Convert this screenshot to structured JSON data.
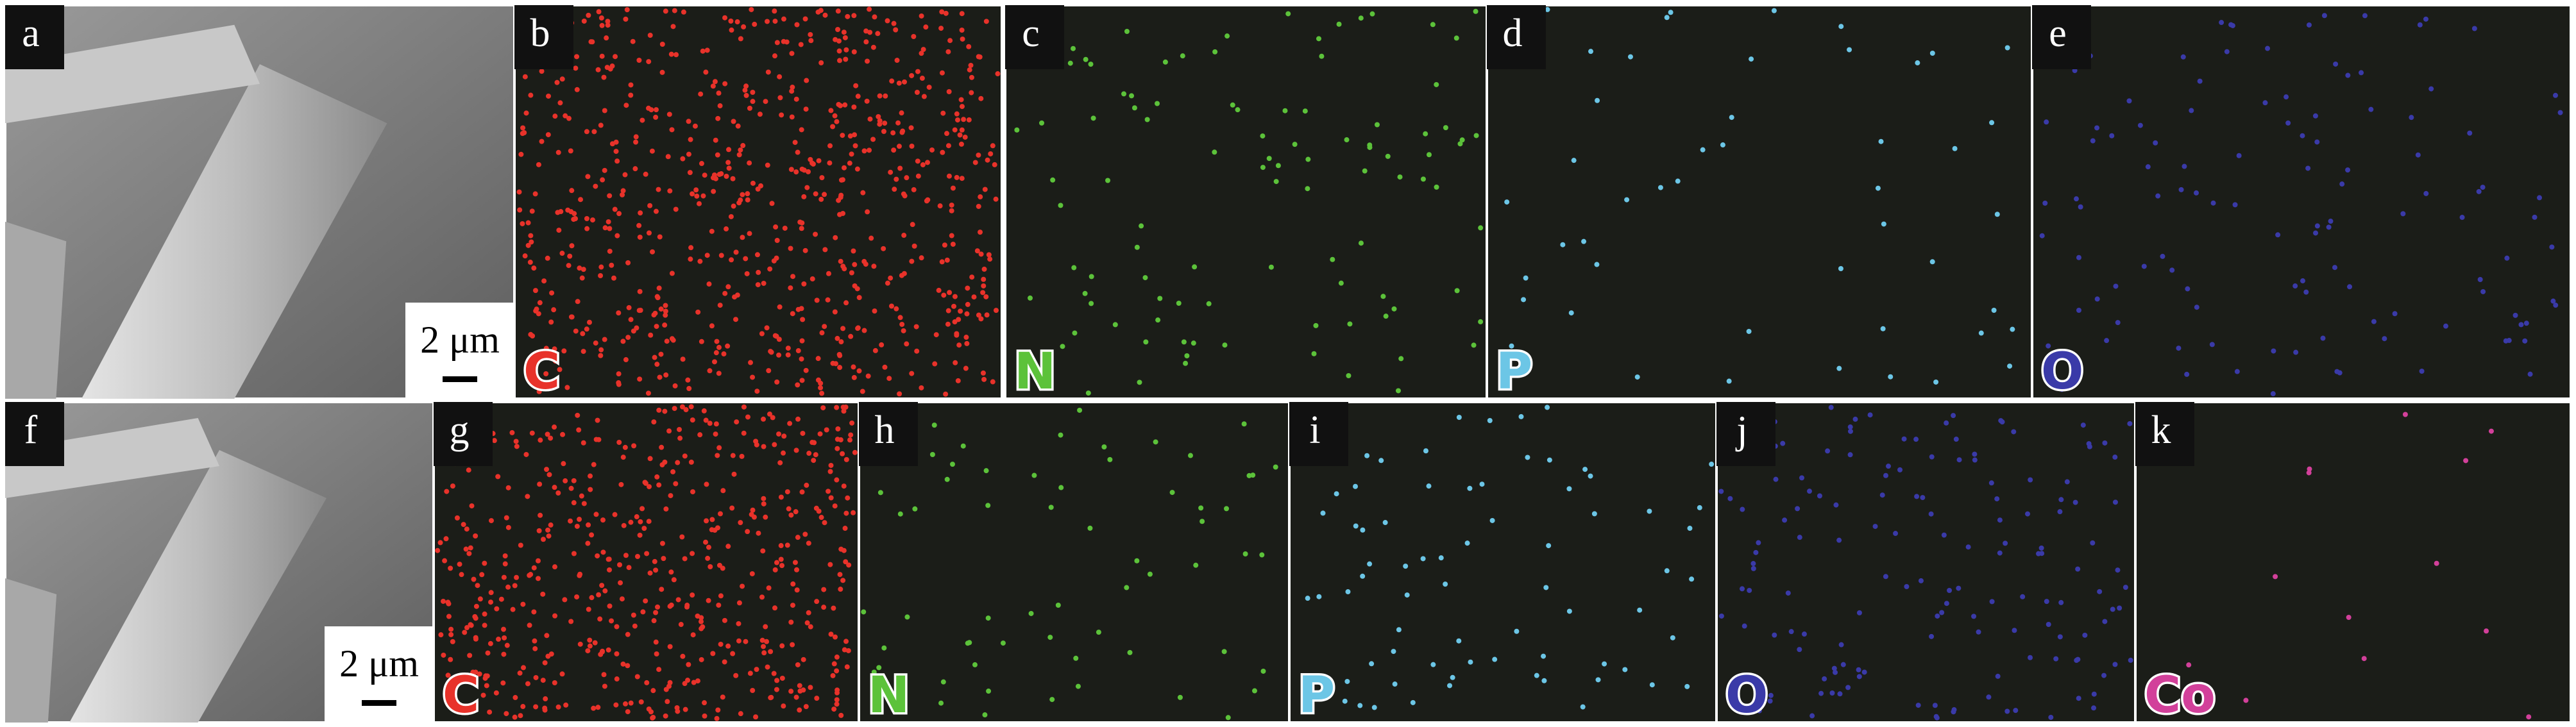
{
  "panels": [
    {
      "label": "a",
      "scale": "2 μm"
    },
    {
      "label": "b",
      "element": "C",
      "color": "#e8322a"
    },
    {
      "label": "c",
      "element": "N",
      "color": "#5cc23a"
    },
    {
      "label": "d",
      "element": "P",
      "color": "#6cc6e6"
    },
    {
      "label": "e",
      "element": "O",
      "color": "#3a3aa8"
    },
    {
      "label": "f",
      "scale": "2 μm"
    },
    {
      "label": "g",
      "element": "C",
      "color": "#e8322a"
    },
    {
      "label": "h",
      "element": "N",
      "color": "#5cc23a"
    },
    {
      "label": "i",
      "element": "P",
      "color": "#6cc6e6"
    },
    {
      "label": "j",
      "element": "O",
      "color": "#3a3aa8"
    },
    {
      "label": "k",
      "element": "Co",
      "color": "#d2409a"
    }
  ]
}
